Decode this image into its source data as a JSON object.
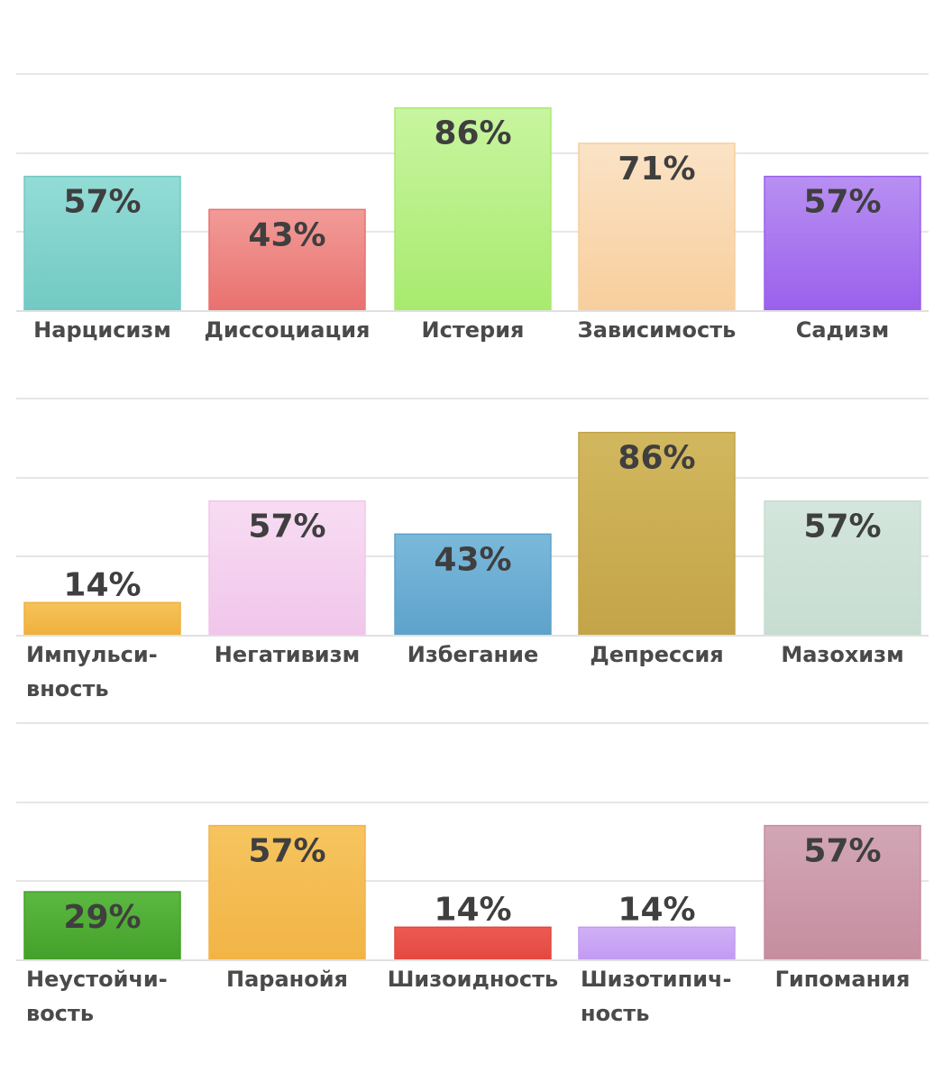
{
  "chart_data": [
    {
      "type": "bar",
      "categories": [
        "Нарцисизм",
        "Диссоциация",
        "Истерия",
        "Зависимость",
        "Садизм"
      ],
      "category_lines": [
        [
          "Нарцисизм"
        ],
        [
          "Диссоциация"
        ],
        [
          "Истерия"
        ],
        [
          "Зависимость"
        ],
        [
          "Садизм"
        ]
      ],
      "values": [
        57,
        43,
        86,
        71,
        57
      ],
      "value_labels": [
        "57%",
        "43%",
        "86%",
        "71%",
        "57%"
      ],
      "colors": [
        [
          "#93dcd6",
          "#72c9c3"
        ],
        [
          "#f29b98",
          "#e8716e"
        ],
        [
          "#c8f5a0",
          "#a8ea6e"
        ],
        [
          "#fae3c6",
          "#f8ce9c"
        ],
        [
          "#b88ff2",
          "#9a60ec"
        ]
      ],
      "ylim": [
        0,
        100
      ],
      "grid": true
    },
    {
      "type": "bar",
      "categories": [
        "Импульси-вность",
        "Негативизм",
        "Избегание",
        "Депрессия",
        "Мазохизм"
      ],
      "category_lines": [
        [
          "Импульси-",
          "вность"
        ],
        [
          "Негативизм"
        ],
        [
          "Избегание"
        ],
        [
          "Депрессия"
        ],
        [
          "Мазохизм"
        ]
      ],
      "values": [
        14,
        57,
        43,
        86,
        57
      ],
      "value_labels": [
        "14%",
        "57%",
        "43%",
        "86%",
        "57%"
      ],
      "colors": [
        [
          "#f5c35a",
          "#f0b03c"
        ],
        [
          "#f8dcf3",
          "#f0c6ea"
        ],
        [
          "#7ab9da",
          "#5ea2cb"
        ],
        [
          "#d1b75e",
          "#c4a448"
        ],
        [
          "#d3e5dc",
          "#c8ddd2"
        ]
      ],
      "ylim": [
        0,
        100
      ],
      "grid": true
    },
    {
      "type": "bar",
      "categories": [
        "Неустойчи-вость",
        "Паранойя",
        "Шизоидность",
        "Шизотипич-ность",
        "Гипомания"
      ],
      "category_lines": [
        [
          "Неустойчи-",
          "вость"
        ],
        [
          "Паранойя"
        ],
        [
          "Шизоидность"
        ],
        [
          "Шизотипич-",
          "ность"
        ],
        [
          "Гипомания"
        ]
      ],
      "values": [
        29,
        57,
        14,
        14,
        57
      ],
      "value_labels": [
        "29%",
        "57%",
        "14%",
        "14%",
        "57%"
      ],
      "colors": [
        [
          "#5bb840",
          "#44a02a"
        ],
        [
          "#f6c45e",
          "#f1b446"
        ],
        [
          "#ee5a52",
          "#e24840"
        ],
        [
          "#d2b0f6",
          "#c29af2"
        ],
        [
          "#d2a6b6",
          "#c58e9f"
        ]
      ],
      "ylim": [
        0,
        100
      ],
      "grid": true
    }
  ]
}
